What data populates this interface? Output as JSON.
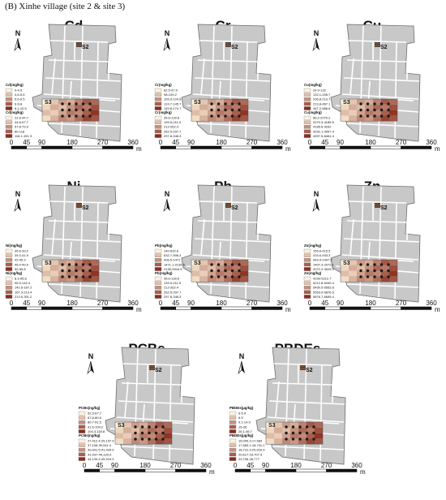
{
  "figure": {
    "title": "(B) Xinhe village (site 2 & site 3)"
  },
  "map_common": {
    "north_label": "N",
    "site2_label": "S2",
    "site3_label": "S3",
    "scale_ticks": [
      "0",
      "45",
      "90",
      "180",
      "270",
      "360"
    ],
    "scale_unit": "m"
  },
  "colors": {
    "parcel_fill": "#c8c8c8",
    "road_line": "#ffffff",
    "ramp_low": "#fdf1da",
    "ramp_high": "#8a2e1f",
    "sample_point": "#1a1a1a"
  },
  "panels": [
    {
      "element": "Cd",
      "legend_top": {
        "header": "Cd(mg/kg)",
        "ranges": [
          "0-4.5",
          "4.6-5.5",
          "5.6-6.5",
          "6.6-8",
          "8.1-10.5"
        ]
      },
      "legend_bottom": {
        "header": "Cd(mg/kg)",
        "ranges": [
          "22.8-44.7",
          "44.8-57.7",
          "57.8-79.9",
          "80-118",
          "118.1-151.3"
        ]
      }
    },
    {
      "element": "Cr",
      "legend_top": {
        "header": "Cr(mg/kg)",
        "ranges": [
          "82.5-97.9",
          "98-109.2",
          "109.3-124.6",
          "124.7-145.7",
          "145.8-174.7"
        ]
      },
      "legend_bottom": {
        "header": "Cr(mg/kg)",
        "ranges": [
          "35.6-139.6",
          "139.5-211.9",
          "212-262.4",
          "262.5-297.7",
          "297.8-348.3"
        ]
      }
    },
    {
      "element": "Cu",
      "legend_top": {
        "header": "Cu(mg/kg)",
        "ranges": [
          "24.9-132",
          "132.1-206.7",
          "206.8-213.7",
          "213.8-467.1",
          "467.2-686.8"
        ]
      },
      "legend_bottom": {
        "header": "Cu(mg/kg)",
        "ranges": [
          "85.2-2070.2",
          "2070.3-4185.5",
          "4185.6-4292",
          "4292.1-4997.4",
          "4997.5-8461.4"
        ]
      }
    },
    {
      "element": "Ni",
      "legend_top": {
        "header": "Ni(mg/kg)",
        "ranges": [
          "35.8-39.2",
          "39.3-41.9",
          "42-45.3",
          "45.4-49.9",
          "50-55.8"
        ]
      },
      "legend_bottom": {
        "header": "Ni(mg/kg)",
        "ranges": [
          "8.3-95.8",
          "95.9-142.4",
          "142.5-167.2",
          "167.3-213.4",
          "213.5-301.2"
        ]
      }
    },
    {
      "element": "Pb",
      "legend_top": {
        "header": "Pb(mg/kg)",
        "ranges": [
          "140-632.6",
          "632.7-906.4",
          "906.5-1471",
          "1471.1-2134.5",
          "2135-3944.5"
        ]
      },
      "legend_bottom": {
        "header": "Pb(mg/kg)",
        "ranges": [
          "35.6-139.6",
          "139.5-211.9",
          "212-262.4",
          "262.5-297.7",
          "297.8-348.3"
        ]
      }
    },
    {
      "element": "Zn",
      "legend_top": {
        "header": "Zn(mg/kg)",
        "ranges": [
          "155.6-415.5",
          "415.6-943.3",
          "943.4-1407.2",
          "1407.3-2072.1",
          "2072.2-3025.2"
        ]
      },
      "legend_bottom": {
        "header": "Zn(mg/kg)",
        "ranges": [
          "4299-5212.7",
          "5212.8-5430.4",
          "5430.5-5553.8",
          "5553.9-5876.6",
          "5876.7-6695.4"
        ]
      }
    },
    {
      "element": "PCBs",
      "legend_top": {
        "header": "PCBs(ng/kg)",
        "ranges": [
          "52.5-67.7",
          "67.8-80.6",
          "80.7-91.5",
          "91.6-104.2",
          "104.3-118.8"
        ]
      },
      "legend_bottom": {
        "header": "PCBs(ng/kg)",
        "ranges": [
          "27,412.4-29,107.9",
          "37,108-39,941.4",
          "39,941.5-41,434.9",
          "41,437-44,139.3",
          "44,139.4-49,919.3"
        ]
      }
    },
    {
      "element": "PBDEs",
      "legend_top": {
        "header": "PBDEs(μg/kg)",
        "ranges": [
          "6-5.9",
          "6-9",
          "9.1-14.9",
          "15-26",
          "26.1-46.7"
        ]
      },
      "legend_bottom": {
        "header": "PBDEs(μg/kg)",
        "ranges": [
          "15,099.3-17,583",
          "17,583.1-18,731.2",
          "18,731.3-20,616.9",
          "20,617-23,707.9",
          "23,708-28,777"
        ]
      }
    }
  ]
}
